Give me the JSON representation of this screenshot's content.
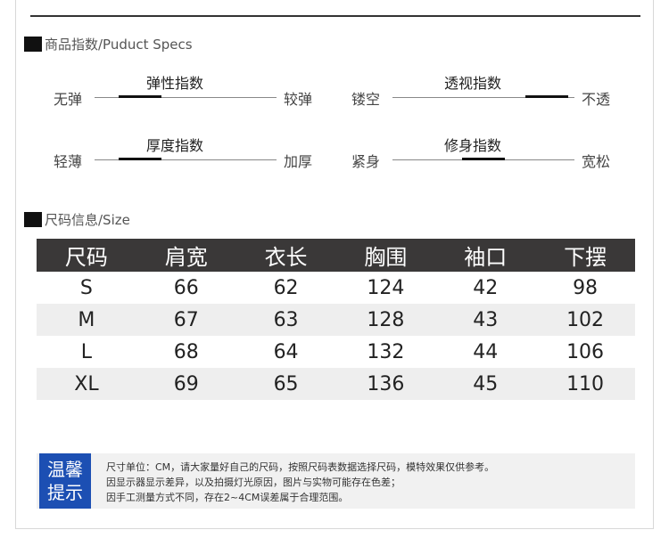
{
  "specs_heading": "商品指数/Puduct Specs",
  "specs": [
    {
      "caption": "弹性指数",
      "left": "无弹",
      "right": "较弹",
      "level": 0.25
    },
    {
      "caption": "透视指数",
      "left": "镂空",
      "right": "不透",
      "level": 0.85
    },
    {
      "caption": "厚度指数",
      "left": "轻薄",
      "right": "加厚",
      "level": 0.25
    },
    {
      "caption": "修身指数",
      "left": "紧身",
      "right": "宽松",
      "level": 0.5
    }
  ],
  "size_heading": "尺码信息/Size",
  "size_table": {
    "headers": [
      "尺码",
      "肩宽",
      "衣长",
      "胸围",
      "袖口",
      "下摆"
    ],
    "rows": [
      [
        "S",
        "66",
        "62",
        "124",
        "42",
        "98"
      ],
      [
        "M",
        "67",
        "63",
        "128",
        "43",
        "102"
      ],
      [
        "L",
        "68",
        "64",
        "132",
        "44",
        "106"
      ],
      [
        "XL",
        "69",
        "65",
        "136",
        "45",
        "110"
      ]
    ]
  },
  "tips": {
    "badge_line1": "温馨",
    "badge_line2": "提示",
    "lines": [
      "尺寸单位：CM，请大家量好自己的尺码，按照尺码表数据选择尺码，模特效果仅供参考。",
      "因显示器显示差异，以及拍摄灯光原因，图片与实物可能存在色差；",
      "因手工测量方式不同，存在2~4CM误差属于合理范围。"
    ]
  }
}
